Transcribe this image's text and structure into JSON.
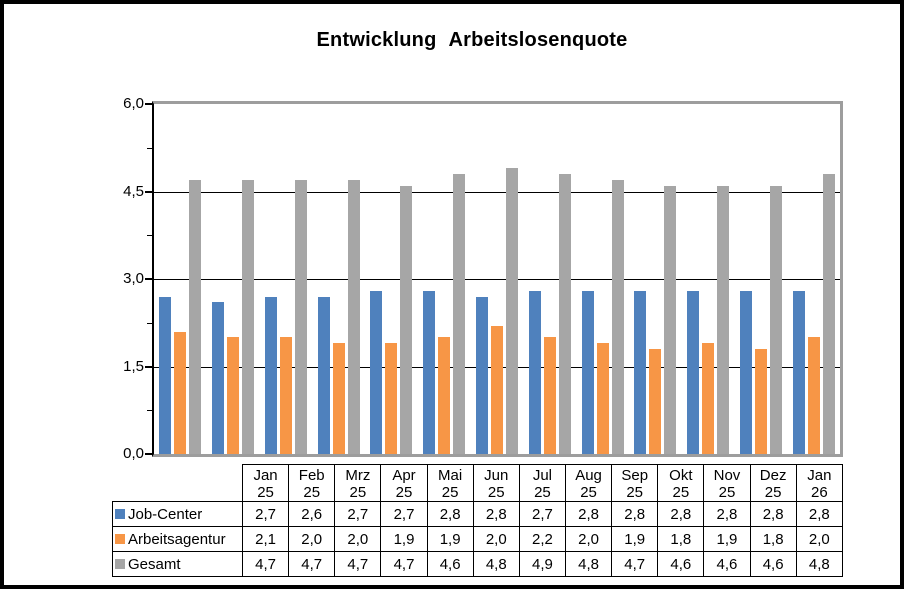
{
  "chart_data": {
    "type": "bar",
    "title": "Entwicklung Arbeitslosenquote",
    "categories": [
      [
        "Jan",
        "25"
      ],
      [
        "Feb",
        "25"
      ],
      [
        "Mrz",
        "25"
      ],
      [
        "Apr",
        "25"
      ],
      [
        "Mai",
        "25"
      ],
      [
        "Jun",
        "25"
      ],
      [
        "Jul",
        "25"
      ],
      [
        "Aug",
        "25"
      ],
      [
        "Sep",
        "25"
      ],
      [
        "Okt",
        "25"
      ],
      [
        "Nov",
        "25"
      ],
      [
        "Dez",
        "25"
      ],
      [
        "Jan",
        "26"
      ]
    ],
    "series": [
      {
        "name": "Job-Center",
        "color": "#4f81bd",
        "values": [
          2.7,
          2.6,
          2.7,
          2.7,
          2.8,
          2.8,
          2.7,
          2.8,
          2.8,
          2.8,
          2.8,
          2.8,
          2.8
        ]
      },
      {
        "name": "Arbeitsagentur",
        "color": "#f79646",
        "values": [
          2.1,
          2.0,
          2.0,
          1.9,
          1.9,
          2.0,
          2.2,
          2.0,
          1.9,
          1.8,
          1.9,
          1.8,
          2.0
        ]
      },
      {
        "name": "Gesamt",
        "color": "#a6a6a6",
        "values": [
          4.7,
          4.7,
          4.7,
          4.7,
          4.6,
          4.8,
          4.9,
          4.8,
          4.7,
          4.6,
          4.6,
          4.6,
          4.8
        ]
      }
    ],
    "ylim": [
      0,
      6
    ],
    "y_ticks": [
      {
        "label": "6,0",
        "value": 6.0
      },
      {
        "label": "4,5",
        "value": 4.5
      },
      {
        "label": "3,0",
        "value": 3.0
      },
      {
        "label": "1,5",
        "value": 1.5
      },
      {
        "label": "0,0",
        "value": 0.0
      }
    ],
    "y_minor_ticks": [
      5.25,
      3.75,
      2.25,
      0.75
    ],
    "gridline_values": [
      4.5,
      3.0,
      1.5
    ],
    "xlabel": "",
    "ylabel": "",
    "grid": "horizontal-major",
    "legend_position": "table-row-labels",
    "decimal_separator": ","
  }
}
